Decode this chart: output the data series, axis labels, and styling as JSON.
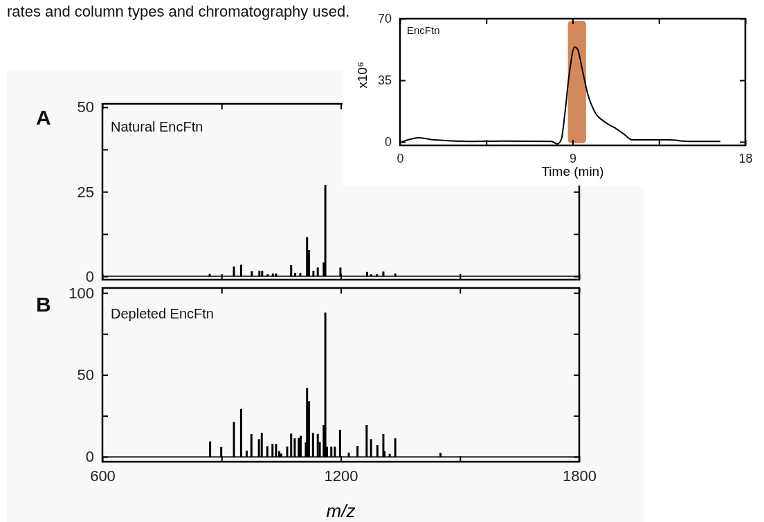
{
  "chart_data": [
    {
      "type": "bar",
      "annotations": [
        "rates and column types and chromatography used.",
        "A",
        "Natural EncFtn"
      ],
      "x": [
        870,
        931,
        949,
        976,
        995,
        1002,
        1016,
        1029,
        1037,
        1075,
        1085,
        1098,
        1115,
        1120,
        1131,
        1142,
        1157,
        1161,
        1199,
        1266,
        1276,
        1291,
        1307,
        1337
      ],
      "values": [
        0.7,
        2.9,
        3.4,
        1.5,
        1.6,
        1.6,
        0.6,
        0.8,
        0.8,
        3.3,
        1.0,
        1.0,
        11.6,
        7.8,
        1.6,
        2.6,
        4.1,
        27,
        2.6,
        1.3,
        0.6,
        0.6,
        1.4,
        0.8
      ],
      "color": "#000000",
      "xlim": [
        600,
        1800
      ],
      "xticks": [
        600,
        {
          "value": 900,
          "label": null
        },
        1200,
        {
          "value": 1500,
          "label": null
        },
        1800
      ],
      "ylim": [
        -1,
        51
      ],
      "yticks": [
        0,
        {
          "value": 12.5,
          "label": null
        },
        25,
        {
          "value": 37.5,
          "label": null
        },
        50
      ],
      "tick_labels": "y"
    },
    {
      "type": "bar",
      "annotations": [
        "B",
        "Depleted EncFtn"
      ],
      "xlabel": "m/z",
      "x": [
        871,
        899,
        931,
        949,
        963,
        975,
        994,
        1001,
        1015,
        1028,
        1037,
        1045,
        1050,
        1065,
        1075,
        1084,
        1094,
        1099,
        1112,
        1115,
        1120,
        1130,
        1142,
        1147,
        1157,
        1161,
        1165,
        1176,
        1185,
        1198,
        1220,
        1242,
        1265,
        1276,
        1292,
        1307,
        1310,
        1323,
        1337,
        1451
      ],
      "values": [
        9.4,
        6.0,
        21.3,
        29.2,
        3.8,
        13.9,
        10.8,
        14.6,
        6.5,
        7.9,
        7.9,
        3.5,
        2,
        6.3,
        14.2,
        11.3,
        11.5,
        12.8,
        8.8,
        42,
        34,
        14.6,
        13.9,
        9.0,
        19.4,
        88,
        6.2,
        6.2,
        6.2,
        16.5,
        2.6,
        6.7,
        19.4,
        10.8,
        7.1,
        13.9,
        3.5,
        1.8,
        11.3,
        2.5
      ],
      "color": "#000000",
      "xlim": [
        600,
        1800
      ],
      "xticks": [
        600,
        {
          "value": 900,
          "label": null
        },
        1200,
        {
          "value": 1500,
          "label": null
        },
        1800
      ],
      "ylim": [
        -3,
        103
      ],
      "yticks": [
        0,
        {
          "value": 25,
          "label": null
        },
        50,
        {
          "value": 75,
          "label": null
        },
        100
      ]
    },
    {
      "type": "line",
      "annotations": [
        "EncFtn"
      ],
      "xlabel": "Time (min)",
      "ylabel": "x10⁶",
      "x": [
        0.1,
        1.0,
        1.8,
        3.5,
        5.4,
        7.9,
        8.2,
        8.4,
        8.6,
        8.8,
        9.1,
        9.25,
        9.5,
        9.8,
        10.1,
        10.7,
        11.2,
        11.7,
        12.1,
        14.0,
        15.1,
        16.7
      ],
      "values": [
        0,
        2.3,
        1.1,
        0.3,
        0.5,
        0.3,
        -1.2,
        1.1,
        16.5,
        36.6,
        53.9,
        52.8,
        41.2,
        26.6,
        18.1,
        11.1,
        8.0,
        4.2,
        1.1,
        1.1,
        0.3,
        0.3
      ],
      "color": "#000000",
      "xlim": [
        0,
        18
      ],
      "xticks": [
        0,
        {
          "value": 4.5,
          "label": null
        },
        9,
        {
          "value": 13.5,
          "label": null
        },
        18
      ],
      "ylim": [
        -2,
        70
      ],
      "yticks": [
        0,
        35,
        70
      ],
      "bands": [
        {
          "axis": "x",
          "from": 8.75,
          "to": 9.7,
          "color": "#d4895a"
        }
      ]
    }
  ]
}
